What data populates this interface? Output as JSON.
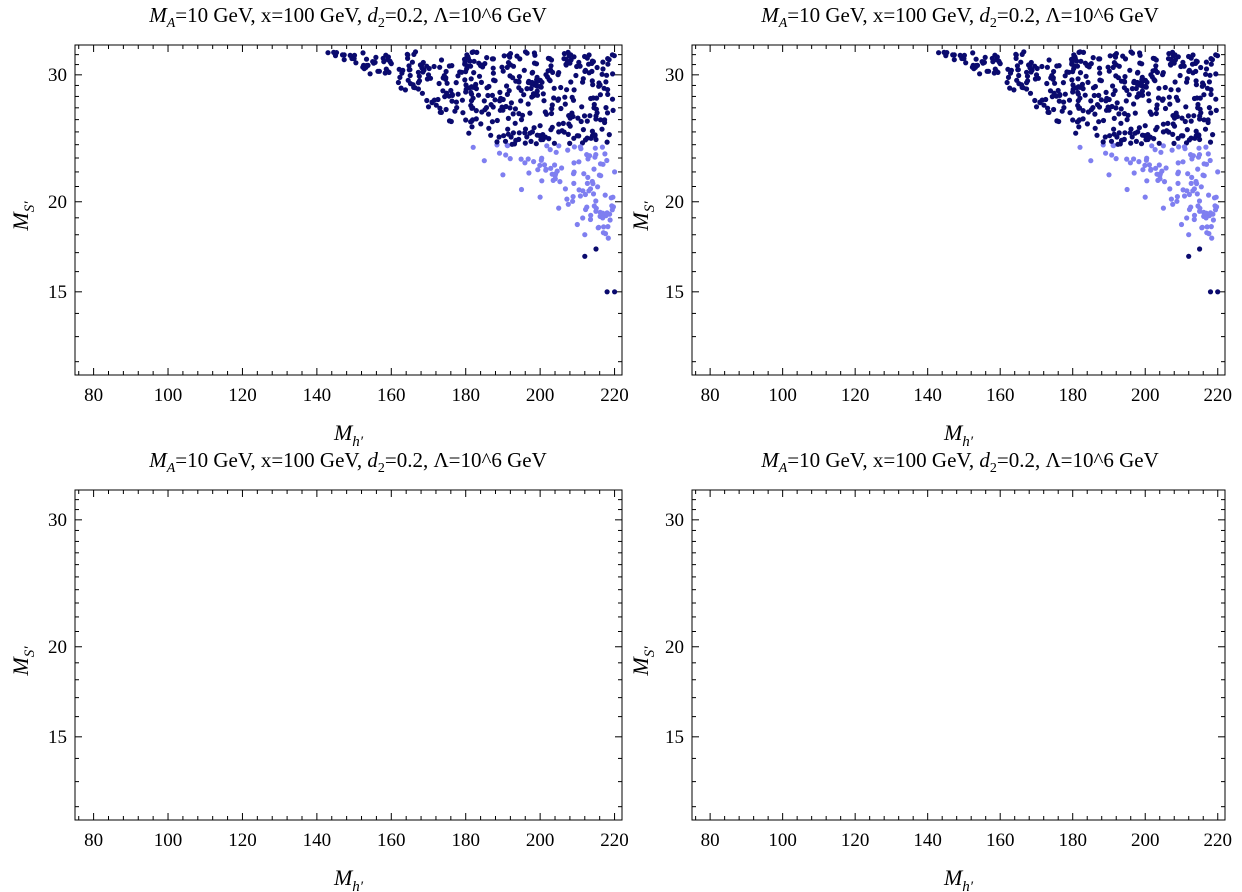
{
  "panels": [
    {
      "title_prefix": "M",
      "title_prefix_sub": "A",
      "title_mid": "=10 GeV, x=100 GeV, ",
      "title_d": "d",
      "title_d_sub": "2",
      "title_suffix": "=0.2, Λ=10^6 GeV",
      "xlabel": "M",
      "xlabel_sub": "h′",
      "ylabel": "M",
      "ylabel_sub": "S′"
    },
    {
      "title_prefix": "M",
      "title_prefix_sub": "A",
      "title_mid": "=10 GeV, x=100 GeV, ",
      "title_d": "d",
      "title_d_sub": "2",
      "title_suffix": "=0.2, Λ=10^6 GeV",
      "xlabel": "M",
      "xlabel_sub": "h′",
      "ylabel": "M",
      "ylabel_sub": "S′"
    },
    {
      "title_prefix": "M",
      "title_prefix_sub": "A",
      "title_mid": "=10 GeV, x=100 GeV, ",
      "title_d": "d",
      "title_d_sub": "2",
      "title_suffix": "=0.2, Λ=10^6 GeV",
      "xlabel": "M",
      "xlabel_sub": "h′",
      "ylabel": "M",
      "ylabel_sub": "S′"
    },
    {
      "title_prefix": "M",
      "title_prefix_sub": "A",
      "title_mid": "=10 GeV, x=100 GeV, ",
      "title_d": "d",
      "title_d_sub": "2",
      "title_suffix": "=0.2, Λ=10^6 GeV",
      "xlabel": "M",
      "xlabel_sub": "h′",
      "ylabel": "M",
      "ylabel_sub": "S′"
    }
  ],
  "chart_data": [
    {
      "type": "scatter",
      "title": "M_A=10 GeV, x=100 GeV, d_2=0.2, Λ=10^6 GeV",
      "xlabel": "M_h′",
      "ylabel": "M_S′",
      "xlim": [
        75,
        222
      ],
      "ylim": [
        11.5,
        33
      ],
      "xticks": [
        80,
        100,
        120,
        140,
        160,
        180,
        200,
        220
      ],
      "yticks": [
        15,
        20,
        30
      ],
      "yscale": "log",
      "grid": false,
      "colors": {
        "dark": "#0a0a6e",
        "light": "#7f7ff0"
      },
      "region_note": "points fill triangle between M_S′≈32 top edge and M_h′≈220 right edge; light points roughly M_S′<24",
      "series": [
        {
          "color": "#0a0a6e",
          "points": [
            [
              143,
              32.2
            ],
            [
              145,
              31.9
            ],
            [
              150,
              31.6
            ],
            [
              155,
              31.3
            ],
            [
              160,
              31.1
            ],
            [
              165,
              30.5
            ],
            [
              170,
              30.0
            ],
            [
              175,
              29.2
            ],
            [
              180,
              28.4
            ],
            [
              185,
              27.6
            ],
            [
              190,
              26.8
            ],
            [
              195,
              26.0
            ],
            [
              200,
              25.5
            ],
            [
              205,
              25.0
            ],
            [
              210,
              24.7
            ],
            [
              215,
              24.4
            ],
            [
              218,
              24.2
            ],
            [
              212,
              16.8
            ],
            [
              215,
              17.2
            ],
            [
              218,
              15.0
            ],
            [
              220,
              15.0
            ]
          ]
        },
        {
          "color": "#7f7ff0",
          "points": [
            [
              182,
              23.8
            ],
            [
              185,
              22.8
            ],
            [
              190,
              21.8
            ],
            [
              195,
              20.8
            ],
            [
              200,
              20.3
            ],
            [
              205,
              19.6
            ],
            [
              210,
              18.6
            ],
            [
              212,
              18.0
            ],
            [
              218,
              19.3
            ],
            [
              220,
              22.0
            ]
          ]
        }
      ]
    },
    {
      "type": "scatter",
      "title": "M_A=10 GeV, x=100 GeV, d_2=0.2, Λ=10^6 GeV",
      "xlabel": "M_h′",
      "ylabel": "M_S′",
      "xlim": [
        75,
        222
      ],
      "ylim": [
        11.5,
        33
      ],
      "xticks": [
        80,
        100,
        120,
        140,
        160,
        180,
        200,
        220
      ],
      "yticks": [
        15,
        20,
        30
      ],
      "yscale": "log",
      "grid": false,
      "colors": {
        "dark": "#0a0a6e",
        "light": "#7f7ff0"
      },
      "series": [
        {
          "color": "#0a0a6e",
          "points": [
            [
              143,
              32.2
            ],
            [
              145,
              31.9
            ],
            [
              150,
              31.6
            ],
            [
              155,
              31.3
            ],
            [
              160,
              31.1
            ],
            [
              165,
              30.5
            ],
            [
              170,
              30.0
            ],
            [
              175,
              29.2
            ],
            [
              180,
              28.4
            ],
            [
              185,
              27.6
            ],
            [
              190,
              26.8
            ],
            [
              195,
              26.0
            ],
            [
              200,
              25.5
            ],
            [
              205,
              25.0
            ],
            [
              210,
              24.7
            ],
            [
              215,
              24.4
            ],
            [
              218,
              24.2
            ],
            [
              212,
              16.8
            ],
            [
              215,
              17.2
            ],
            [
              218,
              15.0
            ],
            [
              220,
              15.0
            ]
          ]
        },
        {
          "color": "#7f7ff0",
          "points": [
            [
              182,
              23.8
            ],
            [
              185,
              22.8
            ],
            [
              190,
              21.8
            ],
            [
              195,
              20.8
            ],
            [
              200,
              20.3
            ],
            [
              205,
              19.6
            ],
            [
              210,
              18.6
            ],
            [
              212,
              18.0
            ],
            [
              218,
              19.3
            ],
            [
              220,
              22.0
            ]
          ]
        }
      ]
    },
    {
      "type": "scatter",
      "title": "M_A=10 GeV, x=100 GeV, d_2=0.2, Λ=10^6 GeV",
      "xlabel": "M_h′",
      "ylabel": "M_S′",
      "xlim": [
        75,
        222
      ],
      "ylim": [
        11.5,
        33
      ],
      "xticks": [
        80,
        100,
        120,
        140,
        160,
        180,
        200,
        220
      ],
      "yticks": [
        15,
        20,
        30
      ],
      "yscale": "log",
      "grid": false,
      "series": []
    },
    {
      "type": "scatter",
      "title": "M_A=10 GeV, x=100 GeV, d_2=0.2, Λ=10^6 GeV",
      "xlabel": "M_h′",
      "ylabel": "M_S′",
      "xlim": [
        75,
        222
      ],
      "ylim": [
        11.5,
        33
      ],
      "xticks": [
        80,
        100,
        120,
        140,
        160,
        180,
        200,
        220
      ],
      "yticks": [
        15,
        20,
        30
      ],
      "yscale": "log",
      "grid": false,
      "series": []
    }
  ]
}
